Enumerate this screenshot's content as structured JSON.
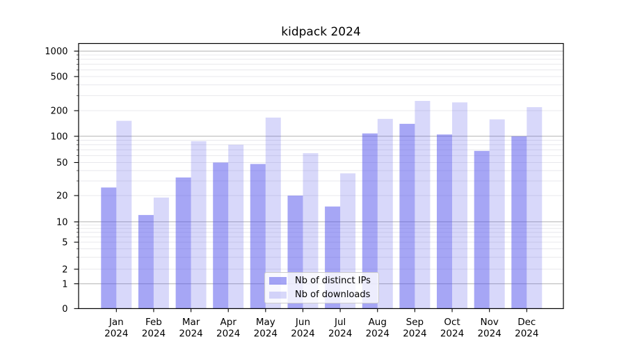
{
  "title": "kidpack 2024",
  "colors": {
    "ips": "rgba(85,85,235,0.52)",
    "downloads": "rgba(85,85,235,0.23)",
    "grid_major": "#b2b2b2",
    "grid_minor": "#e8e8ec",
    "axis": "#000000",
    "text": "#000000",
    "legend_border": "#cccccc"
  },
  "axes": {
    "y_tick_labels": [
      "0",
      "1",
      "2",
      "5",
      "10",
      "20",
      "50",
      "100",
      "200",
      "500",
      "1000"
    ],
    "x_tick_months": [
      "Jan",
      "Feb",
      "Mar",
      "Apr",
      "May",
      "Jun",
      "Jul",
      "Aug",
      "Sep",
      "Oct",
      "Nov",
      "Dec"
    ],
    "x_tick_year": "2024"
  },
  "legend": {
    "items": [
      {
        "label": "Nb of distinct IPs",
        "color_key": "ips"
      },
      {
        "label": "Nb of downloads",
        "color_key": "downloads"
      }
    ]
  },
  "chart_data": {
    "type": "bar",
    "title": "kidpack 2024",
    "categories": [
      "Jan 2024",
      "Feb 2024",
      "Mar 2024",
      "Apr 2024",
      "May 2024",
      "Jun 2024",
      "Jul 2024",
      "Aug 2024",
      "Sep 2024",
      "Oct 2024",
      "Nov 2024",
      "Dec 2024"
    ],
    "series": [
      {
        "name": "Nb of distinct IPs",
        "values": [
          25,
          12,
          33,
          50,
          48,
          20,
          15,
          108,
          140,
          105,
          68,
          100
        ]
      },
      {
        "name": "Nb of downloads",
        "values": [
          152,
          19,
          88,
          80,
          166,
          64,
          37,
          160,
          260,
          250,
          158,
          220
        ]
      }
    ],
    "xlabel": "",
    "ylabel": "",
    "yscale": "log-like (symlog with 0 baseline)",
    "yticks": [
      0,
      1,
      2,
      5,
      10,
      20,
      50,
      100,
      200,
      500,
      1000
    ],
    "ylim": [
      0,
      1230
    ],
    "grid": true,
    "legend_position": "lower center"
  }
}
